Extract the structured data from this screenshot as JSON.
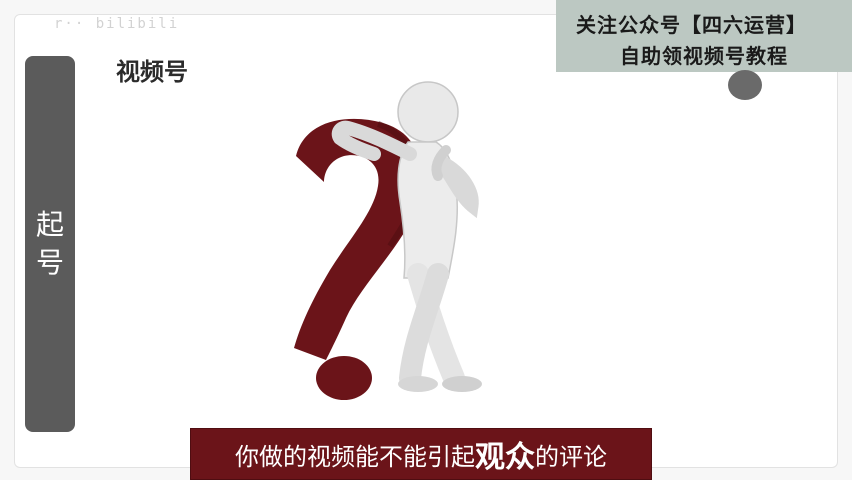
{
  "watermark_text": "r·· bilibili",
  "brand": {
    "title": "视频号"
  },
  "side_panel": {
    "label_line1": "起",
    "label_line2": "号"
  },
  "top_banner": {
    "line1": "关注公众号【四六运营】",
    "line2": "自助领视频号教程"
  },
  "subtitle": {
    "part1": "你做的视频能不能引起",
    "part2": "观众",
    "part3": "的评论"
  },
  "colors": {
    "subtitle_bg": "#6b1419",
    "side_panel_bg": "#5b5b5b",
    "banner_bg": "#bcc8c2",
    "question_mark": "#6b1419"
  },
  "icons": {
    "illustration": "figure-leaning-on-question-mark"
  }
}
